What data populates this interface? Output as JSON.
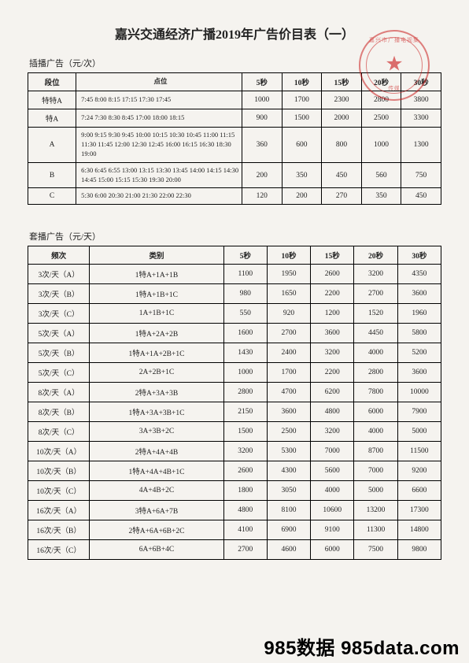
{
  "title": "嘉兴交通经济广播2019年广告价目表（一）",
  "section1_label": "插播广告（元/次）",
  "section2_label": "套播广告（元/天）",
  "table1": {
    "headers": [
      "段位",
      "点位",
      "5秒",
      "10秒",
      "15秒",
      "20秒",
      "30秒"
    ],
    "rows": [
      {
        "segment": "特特A",
        "times": "7:45 8:00 8:15 17:15 17:30 17:45",
        "v": [
          "1000",
          "1700",
          "2300",
          "2800",
          "3800"
        ]
      },
      {
        "segment": "特A",
        "times": "7:24 7:30 8:30 8:45 17:00 18:00 18:15",
        "v": [
          "900",
          "1500",
          "2000",
          "2500",
          "3300"
        ]
      },
      {
        "segment": "A",
        "times": "9:00 9:15 9:30 9:45 10:00 10:15 10:30 10:45  11:00 11:15 11:30 11:45 12:00 12:30 12:45 16:00 16:15 16:30 18:30 19:00",
        "v": [
          "360",
          "600",
          "800",
          "1000",
          "1300"
        ]
      },
      {
        "segment": "B",
        "times": "6:30 6:45 6:55 13:00 13:15 13:30 13:45 14:00 14:15 14:30 14:45 15:00 15:15 15:30 19:30 20:00",
        "v": [
          "200",
          "350",
          "450",
          "560",
          "750"
        ]
      },
      {
        "segment": "C",
        "times": "5:30 6:00 20:30 21:00 21:30 22:00 22:30",
        "v": [
          "120",
          "200",
          "270",
          "350",
          "450"
        ]
      }
    ]
  },
  "table2": {
    "headers": [
      "频次",
      "类别",
      "5秒",
      "10秒",
      "15秒",
      "20秒",
      "30秒"
    ],
    "rows": [
      {
        "freq": "3次/天（A）",
        "cat": "1特A+1A+1B",
        "v": [
          "1100",
          "1950",
          "2600",
          "3200",
          "4350"
        ]
      },
      {
        "freq": "3次/天（B）",
        "cat": "1特A+1B+1C",
        "v": [
          "980",
          "1650",
          "2200",
          "2700",
          "3600"
        ]
      },
      {
        "freq": "3次/天（C）",
        "cat": "1A+1B+1C",
        "v": [
          "550",
          "920",
          "1200",
          "1520",
          "1960"
        ]
      },
      {
        "freq": "5次/天（A）",
        "cat": "1特A+2A+2B",
        "v": [
          "1600",
          "2700",
          "3600",
          "4450",
          "5800"
        ]
      },
      {
        "freq": "5次/天（B）",
        "cat": "1特A+1A+2B+1C",
        "v": [
          "1430",
          "2400",
          "3200",
          "4000",
          "5200"
        ]
      },
      {
        "freq": "5次/天（C）",
        "cat": "2A+2B+1C",
        "v": [
          "1000",
          "1700",
          "2200",
          "2800",
          "3600"
        ]
      },
      {
        "freq": "8次/天（A）",
        "cat": "2特A+3A+3B",
        "v": [
          "2800",
          "4700",
          "6200",
          "7800",
          "10000"
        ]
      },
      {
        "freq": "8次/天（B）",
        "cat": "1特A+3A+3B+1C",
        "v": [
          "2150",
          "3600",
          "4800",
          "6000",
          "7900"
        ]
      },
      {
        "freq": "8次/天（C）",
        "cat": "3A+3B+2C",
        "v": [
          "1500",
          "2500",
          "3200",
          "4000",
          "5000"
        ]
      },
      {
        "freq": "10次/天（A）",
        "cat": "2特A+4A+4B",
        "v": [
          "3200",
          "5300",
          "7000",
          "8700",
          "11500"
        ]
      },
      {
        "freq": "10次/天（B）",
        "cat": "1特A+4A+4B+1C",
        "v": [
          "2600",
          "4300",
          "5600",
          "7000",
          "9200"
        ]
      },
      {
        "freq": "10次/天（C）",
        "cat": "4A+4B+2C",
        "v": [
          "1800",
          "3050",
          "4000",
          "5000",
          "6600"
        ]
      },
      {
        "freq": "16次/天（A）",
        "cat": "3特A+6A+7B",
        "v": [
          "4800",
          "8100",
          "10600",
          "13200",
          "17300"
        ]
      },
      {
        "freq": "16次/天（B）",
        "cat": "2特A+6A+6B+2C",
        "v": [
          "4100",
          "6900",
          "9100",
          "11300",
          "14800"
        ]
      },
      {
        "freq": "16次/天（C）",
        "cat": "6A+6B+4C",
        "v": [
          "2700",
          "4600",
          "6000",
          "7500",
          "9800"
        ]
      }
    ]
  },
  "seal": {
    "text_top": "嘉兴市广播电视集",
    "text_bot": "传媒"
  },
  "watermark": "985数据 985data.com"
}
